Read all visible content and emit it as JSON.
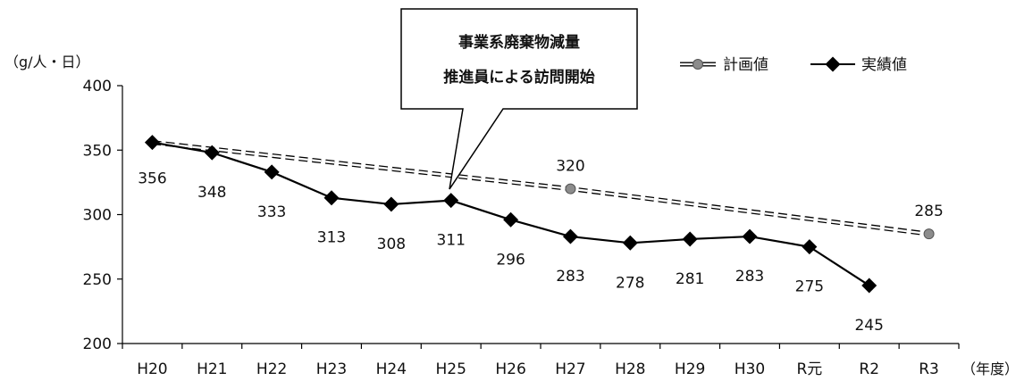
{
  "chart_data": {
    "type": "line",
    "categories": [
      "H20",
      "H21",
      "H22",
      "H23",
      "H24",
      "H25",
      "H26",
      "H27",
      "H28",
      "H29",
      "H30",
      "R元",
      "R2",
      "R3"
    ],
    "ylabel": "（g/人・日）",
    "xlabel": "（年度）",
    "ylim": [
      200,
      400
    ],
    "yticks": [
      200,
      250,
      300,
      350,
      400
    ],
    "grid": false,
    "legend_position": "top-right",
    "series": [
      {
        "name": "計画値",
        "style": "dashed",
        "marker": "circle",
        "color": "#808080",
        "points": [
          {
            "category": "H20",
            "value": 356
          },
          {
            "category": "H27",
            "value": 320
          },
          {
            "category": "R3",
            "value": 285
          }
        ],
        "labels": [
          {
            "category": "H27",
            "text": "320"
          },
          {
            "category": "R3",
            "text": "285"
          }
        ]
      },
      {
        "name": "実績値",
        "style": "solid",
        "marker": "diamond",
        "color": "#000000",
        "values": [
          356,
          348,
          333,
          313,
          308,
          311,
          296,
          283,
          278,
          281,
          283,
          275,
          245,
          null
        ]
      }
    ],
    "annotation": {
      "category": "H25",
      "lines": [
        "事業系廃棄物減量",
        "推進員による訪問開始"
      ]
    }
  }
}
